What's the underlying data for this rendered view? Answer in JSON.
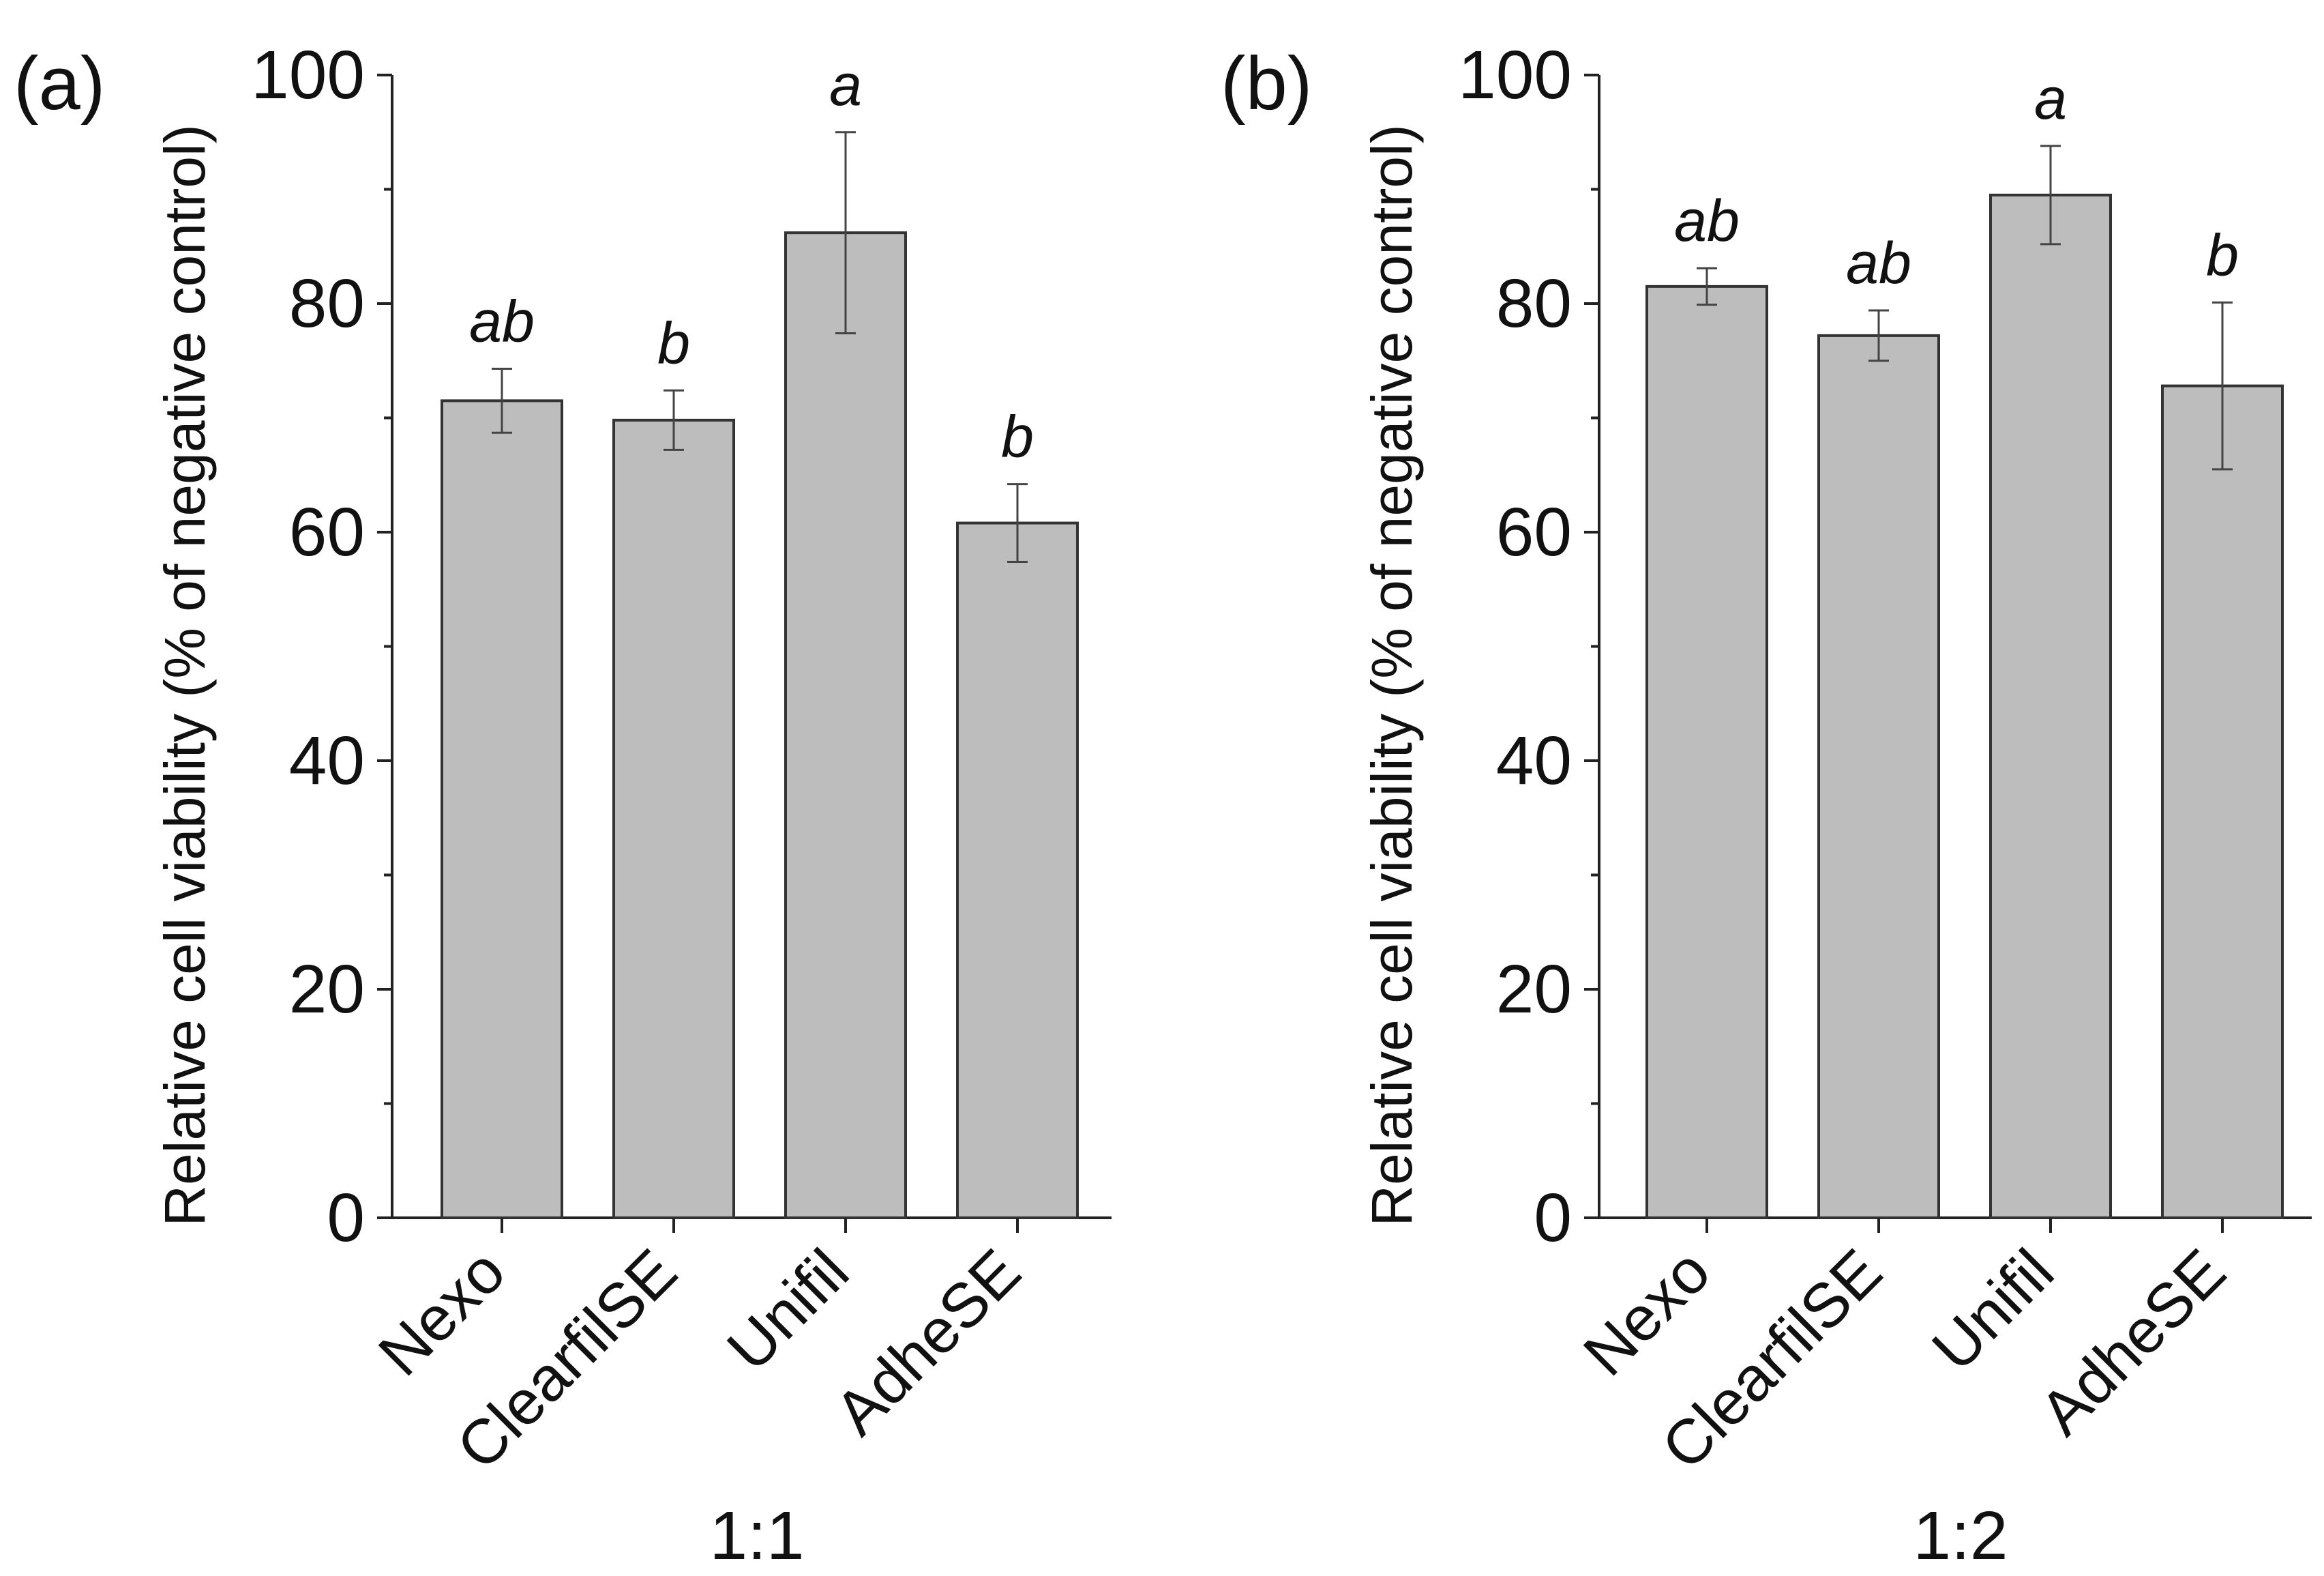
{
  "chart_data": [
    {
      "type": "bar",
      "panel_label": "(a)",
      "categories": [
        "Nexo",
        "ClearfilSE",
        "Unifil",
        "AdheSE"
      ],
      "values": [
        71.5,
        69.8,
        86.2,
        60.8
      ],
      "errors": [
        2.8,
        2.6,
        8.8,
        3.4
      ],
      "significance": [
        "ab",
        "b",
        "a",
        "b"
      ],
      "title": "",
      "xlabel": "1:1",
      "ylabel": "Relative cell viability (% of negative control)",
      "ylim": [
        0,
        100
      ],
      "yticks": [
        0,
        20,
        40,
        60,
        80,
        100
      ],
      "bar_color": "#bdbdbd",
      "grid": false
    },
    {
      "type": "bar",
      "panel_label": "(b)",
      "categories": [
        "Nexo",
        "ClearfilSE",
        "Unifil",
        "AdheSE"
      ],
      "values": [
        81.5,
        77.2,
        89.5,
        72.8
      ],
      "errors": [
        1.6,
        2.2,
        4.3,
        7.3
      ],
      "significance": [
        "ab",
        "ab",
        "a",
        "b"
      ],
      "title": "",
      "xlabel": "1:2",
      "ylabel": "Relative cell viability (% of negative control)",
      "ylim": [
        0,
        100
      ],
      "yticks": [
        0,
        20,
        40,
        60,
        80,
        100
      ],
      "bar_color": "#bdbdbd",
      "grid": false
    }
  ]
}
